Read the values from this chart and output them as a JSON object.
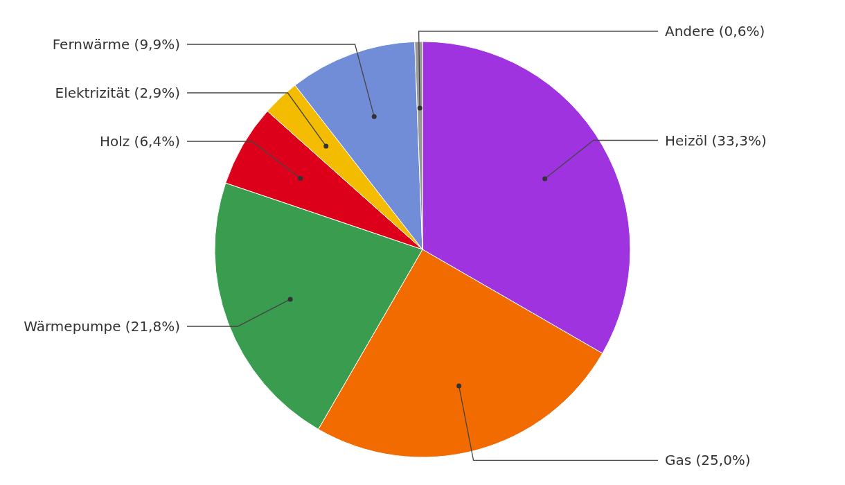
{
  "chart_data": {
    "type": "pie",
    "categories": [
      "Heizöl",
      "Gas",
      "Wärmepumpe",
      "Holz",
      "Elektrizität",
      "Fernwärme",
      "Andere"
    ],
    "values": [
      33.3,
      25.0,
      21.8,
      6.4,
      2.9,
      9.9,
      0.6
    ],
    "value_labels": [
      "(33,3%)",
      "(25,0%)",
      "(21,8%)",
      "(6,4%)",
      "(2,9%)",
      "(9,9%)",
      "(0,6%)"
    ],
    "colors": [
      "#a033e0",
      "#f26b00",
      "#3a9c4f",
      "#dc001a",
      "#f3bc00",
      "#728dd8",
      "#999999"
    ],
    "legend": false
  }
}
